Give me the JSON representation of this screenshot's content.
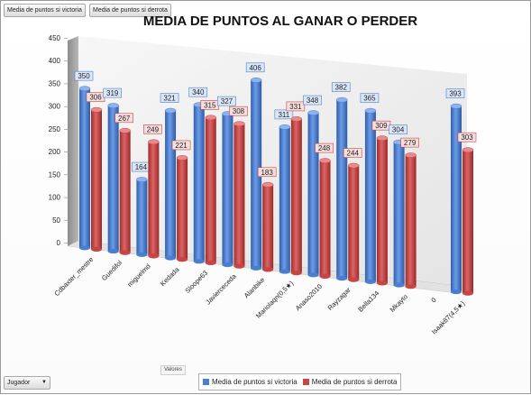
{
  "buttons": {
    "victoria": "Media de puntos si victoria",
    "derrota": "Media de puntos si derrota",
    "jugador": "Jugador",
    "valores": "Valores"
  },
  "colors": {
    "victoria": "#4a7fd0",
    "derrota": "#c64545"
  },
  "chart_data": {
    "type": "bar",
    "title": "MEDIA DE PUNTOS  AL GANAR O PERDER",
    "ylim": [
      0,
      450
    ],
    "yticks": [
      0,
      50,
      100,
      150,
      200,
      250,
      300,
      350,
      400,
      450
    ],
    "grid": false,
    "legend": "bottom",
    "categories": [
      "Cdbaxter_mestre",
      "Guedifol",
      "miguelmd",
      "Kedada",
      "Sloope63",
      "Javierceceda",
      "Alanbike",
      "Mariolaqn(0,5★)",
      "Anaso2010",
      "Rayzagar",
      "Bella134",
      "Mkayto",
      "0",
      "Isaak87(4,5★)"
    ],
    "series": [
      {
        "name": "Media de puntos si victoria",
        "values": [
          350,
          319,
          164,
          321,
          340,
          327,
          406,
          311,
          348,
          382,
          365,
          304,
          null,
          393
        ]
      },
      {
        "name": "Media de puntos si derrota",
        "values": [
          306,
          267,
          249,
          221,
          315,
          308,
          183,
          331,
          248,
          244,
          309,
          279,
          null,
          303
        ]
      }
    ]
  }
}
